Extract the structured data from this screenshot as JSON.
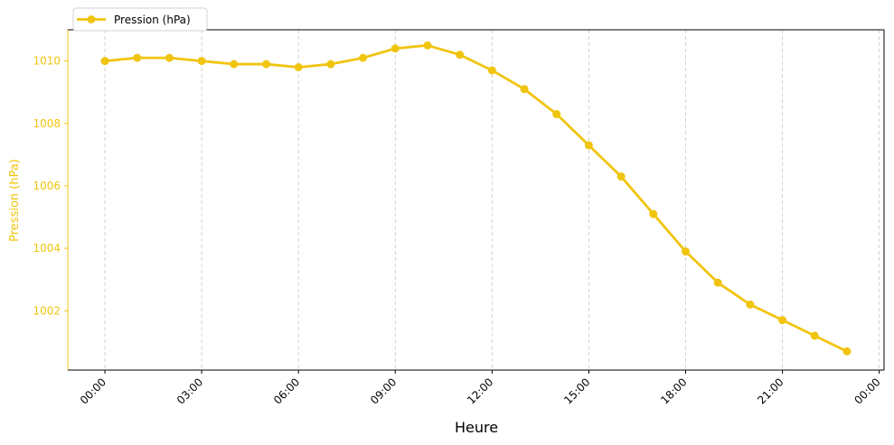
{
  "chart_data": {
    "type": "line",
    "title": "",
    "xlabel": "Heure",
    "ylabel": "Pression (hPa)",
    "x_tick_labels": [
      "00:00",
      "03:00",
      "06:00",
      "09:00",
      "12:00",
      "15:00",
      "18:00",
      "21:00",
      "00:00"
    ],
    "x_tick_hours": [
      0,
      3,
      6,
      9,
      12,
      15,
      18,
      21,
      24
    ],
    "y_ticks": [
      1002,
      1004,
      1006,
      1008,
      1010
    ],
    "ylim": [
      1000.1,
      1011.0
    ],
    "xlim_hours": [
      -1.15,
      24.15
    ],
    "grid": "vertical dashed",
    "legend_position": "top-left",
    "series": [
      {
        "name": "Pression (hPa)",
        "color": "#f1c40f",
        "x_hours": [
          0,
          1,
          2,
          3,
          4,
          5,
          6,
          7,
          8,
          9,
          10,
          11,
          12,
          13,
          14,
          15,
          16,
          17,
          18,
          19,
          20,
          21,
          22,
          23
        ],
        "values": [
          1010.0,
          1010.1,
          1010.1,
          1010.0,
          1009.9,
          1009.9,
          1009.8,
          1009.9,
          1010.1,
          1010.4,
          1010.5,
          1010.2,
          1009.7,
          1009.1,
          1008.3,
          1007.3,
          1006.3,
          1005.1,
          1003.9,
          1002.9,
          1002.2,
          1001.7,
          1001.2,
          1000.7
        ]
      }
    ]
  }
}
